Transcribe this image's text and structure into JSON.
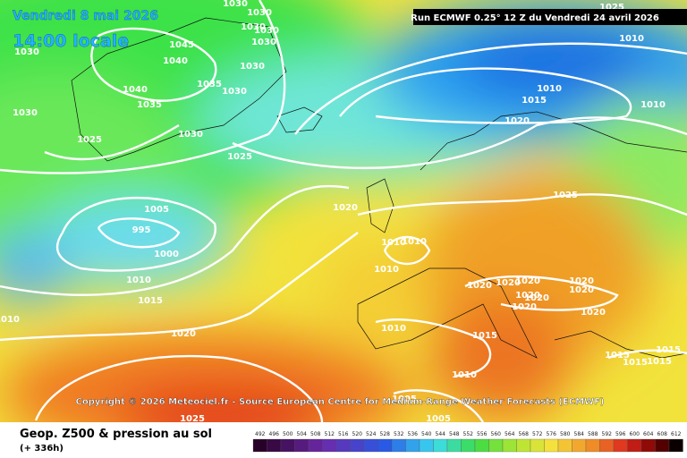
{
  "header": {
    "date": "Vendredi 8 mai 2026",
    "time": "14:00 locale",
    "run": "Run ECMWF 0.25° 12 Z du Vendredi 24 avril 2026"
  },
  "copyright": "Copyright © 2026 Meteociel.fr - Source European Centre for Medium-Range Weather Forecasts (ECMWF)",
  "footer": {
    "title": "Geop. Z500 & pression au sol",
    "lead": "(+ 336h)"
  },
  "isobar_labels": [
    "1030",
    "1030",
    "1030",
    "1030",
    "1030",
    "1045",
    "1030",
    "1040",
    "1030",
    "1040",
    "1035",
    "1030",
    "1035",
    "1030",
    "1030",
    "1025",
    "1025",
    "1005",
    "995",
    "1000",
    "1010",
    "1015",
    "1010",
    "1020",
    "1025",
    "1010",
    "1025",
    "1010",
    "1015",
    "1010",
    "1020",
    "1025",
    "1020",
    "1010",
    "1010",
    "1010",
    "1020",
    "1020",
    "1020",
    "1020",
    "1020",
    "1020",
    "1020",
    "1020",
    "1020",
    "1010",
    "1015",
    "1015",
    "1015",
    "1015",
    "1015",
    "1010",
    "1005",
    "1005"
  ],
  "colorbar": {
    "labels": [
      "492",
      "496",
      "500",
      "504",
      "508",
      "512",
      "516",
      "520",
      "524",
      "528",
      "532",
      "536",
      "540",
      "544",
      "548",
      "552",
      "556",
      "560",
      "564",
      "568",
      "572",
      "576",
      "580",
      "584",
      "588",
      "592",
      "596",
      "600",
      "604",
      "608",
      "612"
    ]
  }
}
